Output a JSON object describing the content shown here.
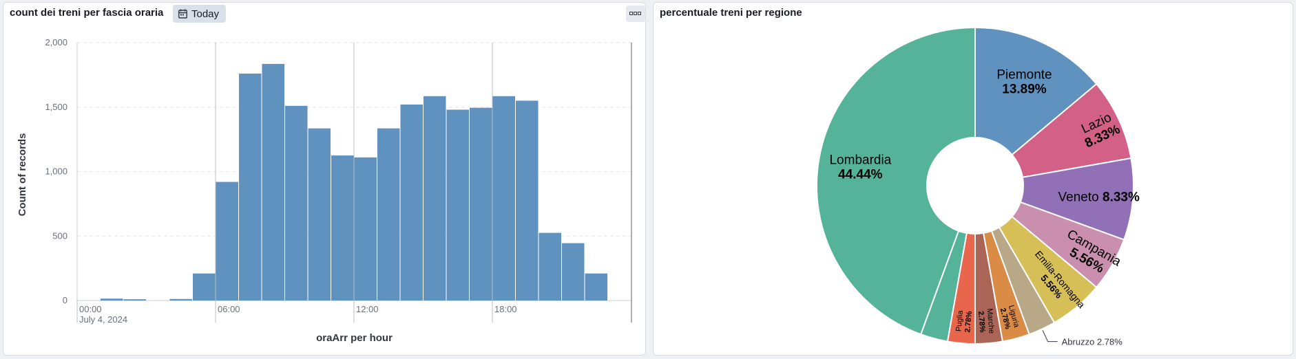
{
  "panels": [
    {
      "title": "count dei treni per fascia oraria",
      "time_badge": "Today",
      "chart_data": {
        "type": "bar",
        "xlabel": "oraArr per hour",
        "ylabel": "Count of records",
        "ylim": [
          0,
          2000
        ],
        "y_ticks": [
          "0",
          "500",
          "1,000",
          "1,500",
          "2,000"
        ],
        "x_ticks": [
          "00:00",
          "06:00",
          "12:00",
          "18:00"
        ],
        "x_date_label": "July 4, 2024",
        "categories": [
          "00:00",
          "01:00",
          "02:00",
          "03:00",
          "04:00",
          "05:00",
          "06:00",
          "07:00",
          "08:00",
          "09:00",
          "10:00",
          "11:00",
          "12:00",
          "13:00",
          "14:00",
          "15:00",
          "16:00",
          "17:00",
          "18:00",
          "19:00",
          "20:00",
          "21:00",
          "22:00",
          "23:00"
        ],
        "values": [
          0,
          15,
          10,
          0,
          12,
          210,
          920,
          1760,
          1835,
          1510,
          1335,
          1125,
          1110,
          1335,
          1520,
          1585,
          1480,
          1495,
          1585,
          1550,
          525,
          445,
          210,
          0
        ],
        "color": "#6092c0",
        "grid": true
      }
    },
    {
      "title": "percentuale treni per regione",
      "chart_data": {
        "type": "pie",
        "slices": [
          {
            "label": "Piemonte",
            "pct": "13.89%",
            "value": 13.89,
            "color": "#6092c0"
          },
          {
            "label": "Lazio",
            "pct": "8.33%",
            "value": 8.33,
            "color": "#d36086"
          },
          {
            "label": "Veneto",
            "pct": "8.33%",
            "value": 8.33,
            "color": "#9170b8"
          },
          {
            "label": "Campania",
            "pct": "5.56%",
            "value": 5.56,
            "color": "#ca8eae"
          },
          {
            "label": "Emilia-Romagna",
            "pct": "5.56%",
            "value": 5.56,
            "color": "#d6bf57"
          },
          {
            "label": "Abruzzo",
            "pct": "2.78%",
            "value": 2.78,
            "color": "#b9a888"
          },
          {
            "label": "Liguria",
            "pct": "2.78%",
            "value": 2.78,
            "color": "#da8b45"
          },
          {
            "label": "Marche",
            "pct": "2.78%",
            "value": 2.78,
            "color": "#aa6556"
          },
          {
            "label": "Puglia",
            "pct": "2.78%",
            "value": 2.78,
            "color": "#e7664c"
          },
          {
            "label": "",
            "pct": "",
            "value": 2.78,
            "color": "#54b399"
          },
          {
            "label": "Lombardia",
            "pct": "44.44%",
            "value": 44.44,
            "color": "#54b399"
          }
        ]
      }
    }
  ]
}
